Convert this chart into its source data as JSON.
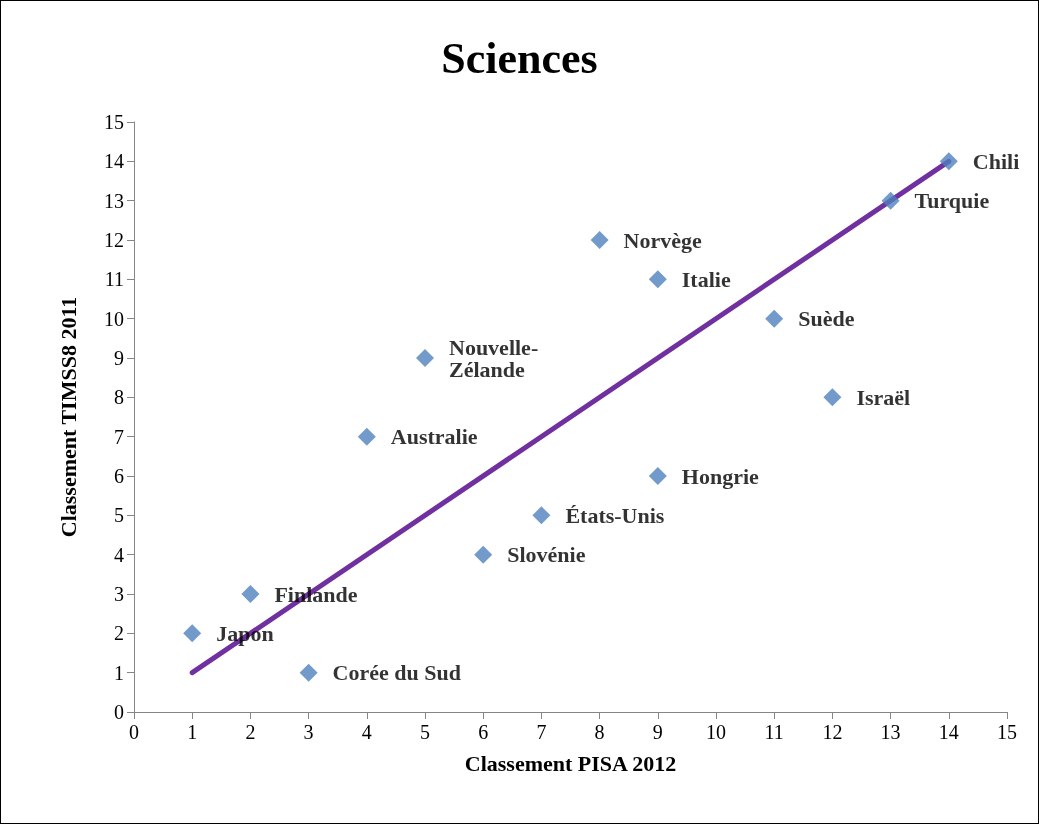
{
  "chart_data": {
    "type": "scatter",
    "title": "Sciences",
    "xlabel": "Classement PISA 2012",
    "ylabel": "Classement TIMSS8 2011",
    "xlim": [
      0,
      15
    ],
    "xticks": [
      0,
      1,
      2,
      3,
      4,
      5,
      6,
      7,
      8,
      9,
      10,
      11,
      12,
      13,
      14,
      15
    ],
    "ylim": [
      0,
      15
    ],
    "yticks": [
      0,
      1,
      2,
      3,
      4,
      5,
      6,
      7,
      8,
      9,
      10,
      11,
      12,
      13,
      14,
      15
    ],
    "grid": false,
    "marker": "diamond",
    "series": [
      {
        "color": "#4f81bd",
        "x": [
          1,
          2,
          3,
          4,
          5,
          6,
          7,
          8,
          9,
          9,
          11,
          12,
          13,
          14
        ],
        "values": [
          2,
          3,
          1,
          7,
          9,
          4,
          5,
          12,
          11,
          6,
          10,
          8,
          13,
          14
        ]
      },
      {
        "type": "line",
        "color": "#7030a0",
        "marker": "none",
        "line_style": "solid",
        "x": [
          1,
          14
        ],
        "values": [
          1,
          14
        ]
      }
    ],
    "annotations": [
      {
        "text": "Japon",
        "x": 1,
        "y": 2
      },
      {
        "text": "Finlande",
        "x": 2,
        "y": 3
      },
      {
        "text": "Corée du Sud",
        "x": 3,
        "y": 1
      },
      {
        "text": "Australie",
        "x": 4,
        "y": 7
      },
      {
        "text": "Nouvelle-Zélande",
        "x": 5,
        "y": 9
      },
      {
        "text": "Slovénie",
        "x": 6,
        "y": 4
      },
      {
        "text": "États-Unis",
        "x": 7,
        "y": 5
      },
      {
        "text": "Norvège",
        "x": 8,
        "y": 12
      },
      {
        "text": "Italie",
        "x": 9,
        "y": 11
      },
      {
        "text": "Hongrie",
        "x": 9,
        "y": 6
      },
      {
        "text": "Suède",
        "x": 11,
        "y": 10
      },
      {
        "text": "Israël",
        "x": 12,
        "y": 8
      },
      {
        "text": "Turquie",
        "x": 13,
        "y": 13
      },
      {
        "text": "Chili",
        "x": 14,
        "y": 14
      }
    ]
  }
}
